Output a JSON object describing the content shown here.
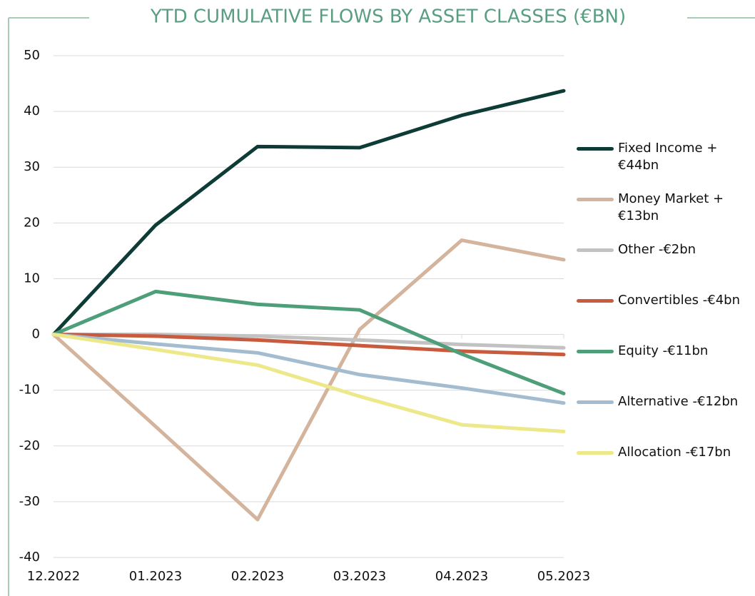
{
  "chart_data": {
    "type": "line",
    "title": "YTD CUMULATIVE FLOWS BY ASSET CLASSES (€BN)",
    "categories": [
      "12.2022",
      "01.2023",
      "02.2023",
      "03.2023",
      "04.2023",
      "05.2023"
    ],
    "ylim": [
      -40,
      50
    ],
    "yticks": [
      -40,
      -30,
      -20,
      -10,
      0,
      10,
      20,
      30,
      40,
      50
    ],
    "grid": true,
    "series": [
      {
        "name": "Fixed Income +€44bn",
        "color": "#0d3b36",
        "values": [
          0,
          19.6,
          33.7,
          33.5,
          39.3,
          43.7
        ]
      },
      {
        "name": "Money Market +€13bn",
        "color": "#d4b49c",
        "values": [
          0,
          -16.5,
          -33.2,
          0.9,
          16.9,
          13.4
        ]
      },
      {
        "name": "Other -€2bn",
        "color": "#c2c2c2",
        "values": [
          0,
          0,
          -0.3,
          -1,
          -1.8,
          -2.4
        ]
      },
      {
        "name": "Convertibles -€4bn",
        "color": "#c85a3e",
        "values": [
          0,
          -0.3,
          -1,
          -2,
          -3,
          -3.6
        ]
      },
      {
        "name": "Equity -€11bn",
        "color": "#4f9e7a",
        "values": [
          0,
          7.7,
          5.4,
          4.4,
          -3.5,
          -10.6
        ]
      },
      {
        "name": "Alternative -€12bn",
        "color": "#a3bcd0",
        "values": [
          0,
          -1.7,
          -3.3,
          -7.2,
          -9.6,
          -12.3
        ]
      },
      {
        "name": "Allocation -€17bn",
        "color": "#ede88a",
        "values": [
          0,
          -2.7,
          -5.5,
          -11.1,
          -16.2,
          -17.4
        ]
      }
    ]
  }
}
